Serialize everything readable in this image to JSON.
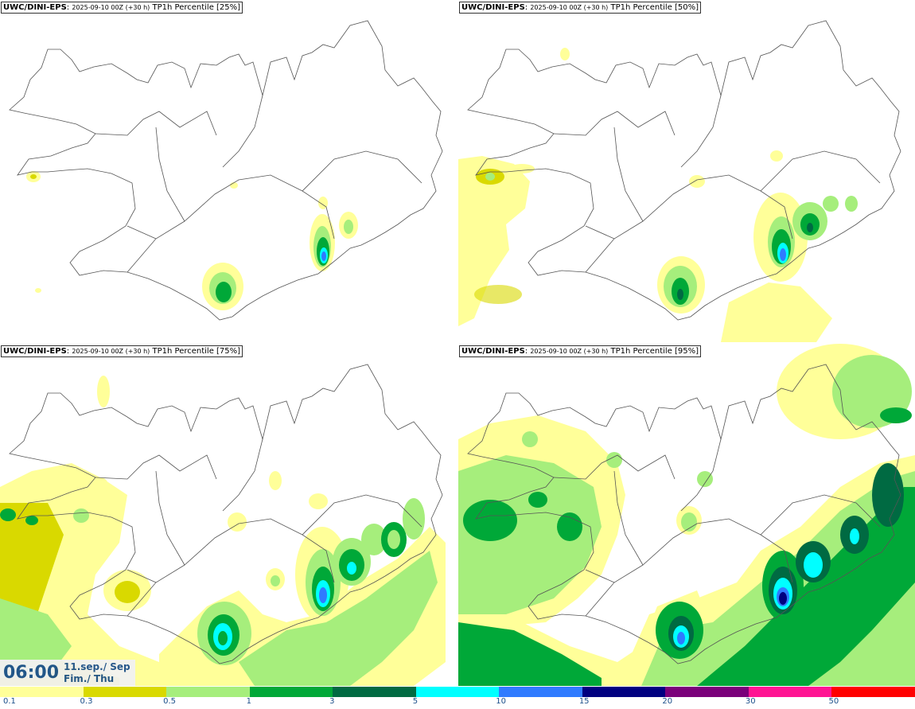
{
  "panels": [
    {
      "model": "UWC/DINI-EPS",
      "run": "2025-09-10 00Z (+30 h)",
      "field": "TP1h Percentile [25%]",
      "percentile": 25
    },
    {
      "model": "UWC/DINI-EPS",
      "run": "2025-09-10 00Z (+30 h)",
      "field": "TP1h Percentile [50%]",
      "percentile": 50
    },
    {
      "model": "UWC/DINI-EPS",
      "run": "2025-09-10 00Z (+30 h)",
      "field": "TP1h Percentile [75%]",
      "percentile": 75
    },
    {
      "model": "UWC/DINI-EPS",
      "run": "2025-09-10 00Z (+30 h)",
      "field": "TP1h Percentile [95%]",
      "percentile": 95
    }
  ],
  "valid_time": {
    "time": "06:00",
    "date_line1": "11.sep./ Sep",
    "date_line2": "Fim./ Thu"
  },
  "legend": {
    "labels": [
      "0.1",
      "0.3",
      "0.5",
      "1",
      "3",
      "5",
      "10",
      "15",
      "20",
      "30",
      "50"
    ],
    "colors": [
      "#ffff99",
      "#d9d900",
      "#a6ee7c",
      "#00a838",
      "#006a42",
      "#00ffff",
      "#2f7bff",
      "#000080",
      "#7a007a",
      "#ff1493",
      "#ff0000"
    ]
  }
}
